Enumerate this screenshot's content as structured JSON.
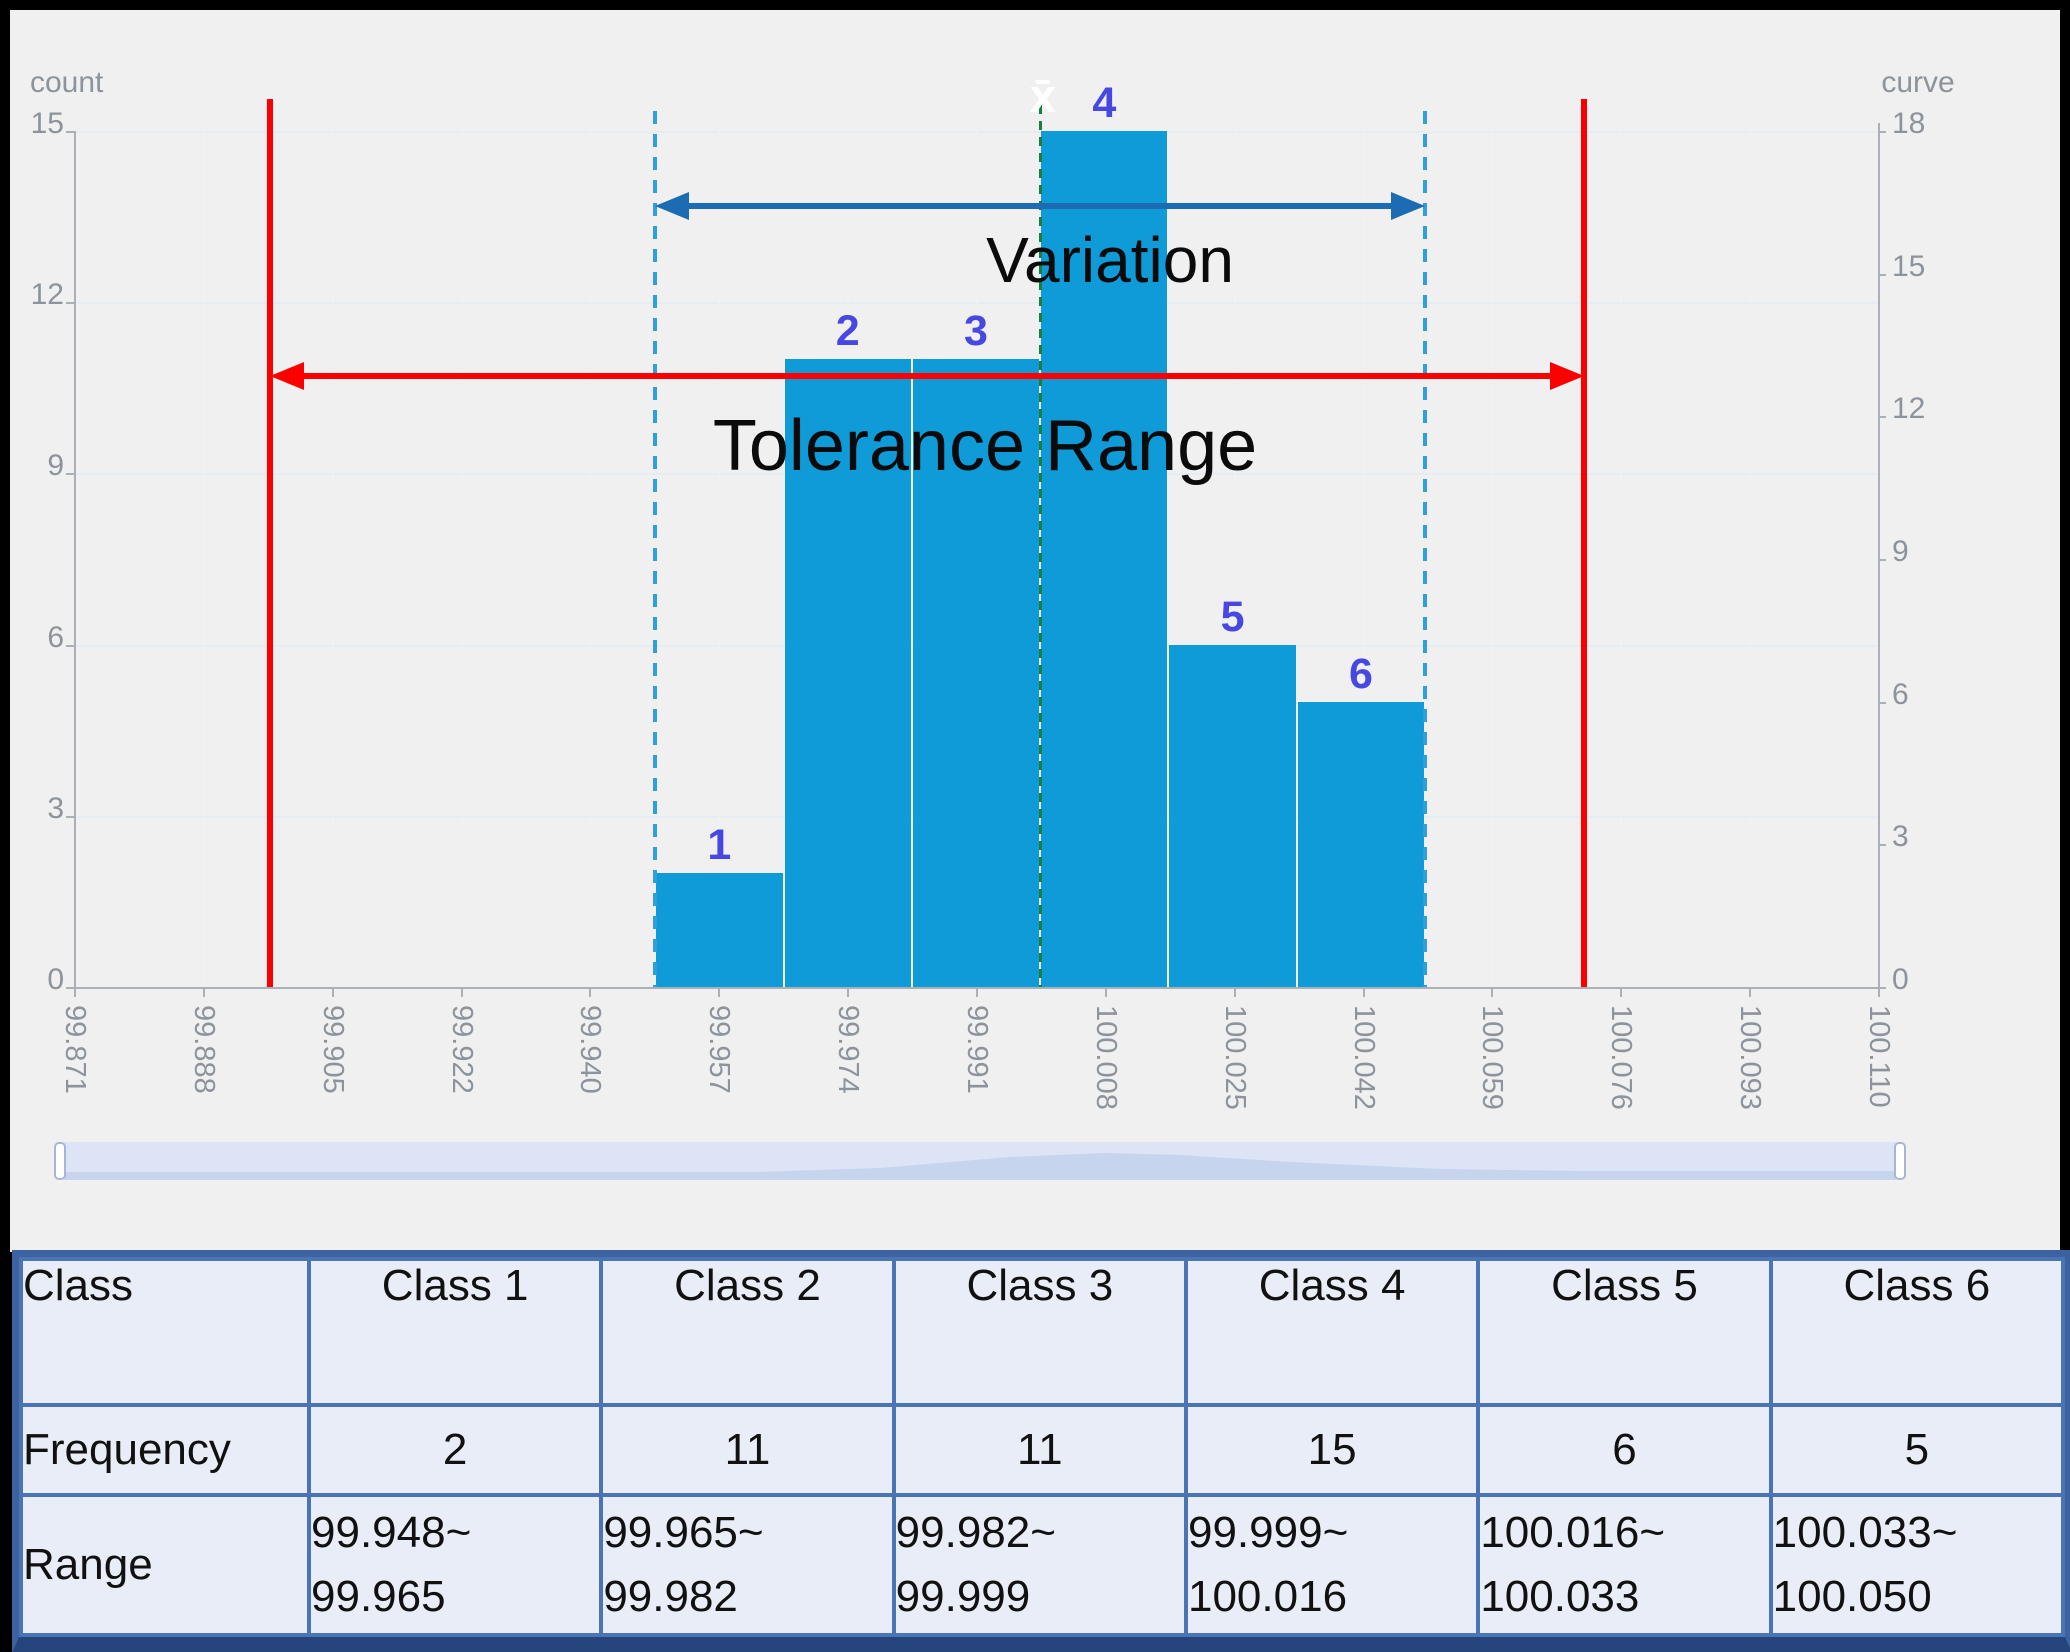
{
  "chart_data": {
    "type": "bar",
    "title": "",
    "left_axis": {
      "label": "count",
      "min": 0,
      "max": 15,
      "ticks": [
        15,
        12,
        9,
        6,
        3,
        0
      ]
    },
    "right_axis": {
      "label": "curve",
      "min": 0,
      "max": 18,
      "ticks": [
        18,
        15,
        12,
        9,
        6,
        3,
        0
      ]
    },
    "x_axis": {
      "min": 99.871,
      "max": 100.11,
      "tick_labels": [
        "99.871",
        "99.888",
        "99.905",
        "99.922",
        "99.940",
        "99.957",
        "99.974",
        "99.991",
        "100.008",
        "100.025",
        "100.042",
        "100.059",
        "100.076",
        "100.093",
        "100.110"
      ]
    },
    "grid": true,
    "legend_position": "none",
    "series": [
      {
        "name": "count",
        "bars": [
          {
            "class": 1,
            "lo": 99.948,
            "hi": 99.965,
            "count": 2
          },
          {
            "class": 2,
            "lo": 99.965,
            "hi": 99.982,
            "count": 11
          },
          {
            "class": 3,
            "lo": 99.982,
            "hi": 99.999,
            "count": 11
          },
          {
            "class": 4,
            "lo": 99.999,
            "hi": 100.016,
            "count": 15
          },
          {
            "class": 5,
            "lo": 100.016,
            "hi": 100.033,
            "count": 6
          },
          {
            "class": 6,
            "lo": 100.033,
            "hi": 100.05,
            "count": 5
          }
        ]
      }
    ],
    "annotations": {
      "variation_label": "Variation",
      "tolerance_label": "Tolerance Range",
      "mean_symbol": "x̄",
      "mean_value": 99.999,
      "variation_range": [
        99.948,
        100.05
      ],
      "tolerance_range": [
        99.897,
        100.071
      ]
    },
    "colors": {
      "bar": "#0f9bd7",
      "bar_label": "#4747e2",
      "tolerance_line": "#fb0000",
      "variation_line": "#2e9fd8",
      "mean_line": "#15803d",
      "variation_arrow": "#1b6cb3",
      "tolerance_arrow": "#fb0000",
      "axis_text": "#8d939b",
      "panel_bg": "#f0f0f1",
      "navigator_bg": "#dce4f5",
      "navigator_wave": "#c7d4ee",
      "table_border": "#4a74b4",
      "table_cell_bg": "#e9edf8",
      "class_header_text": "#1a73c0"
    }
  },
  "table": {
    "header_row": {
      "label": "Class",
      "columns": [
        "Class 1",
        "Class 2",
        "Class 3",
        "Class 4",
        "Class 5",
        "Class 6"
      ]
    },
    "rows": [
      {
        "label": "Frequency",
        "values": [
          "2",
          "11",
          "11",
          "15",
          "6",
          "5"
        ]
      },
      {
        "label": "Range",
        "values": [
          "99.948~\n99.965",
          "99.965~\n99.982",
          "99.982~\n99.999",
          "99.999~\n100.016",
          "100.016~\n100.033",
          "100.033~\n100.050"
        ]
      }
    ]
  }
}
